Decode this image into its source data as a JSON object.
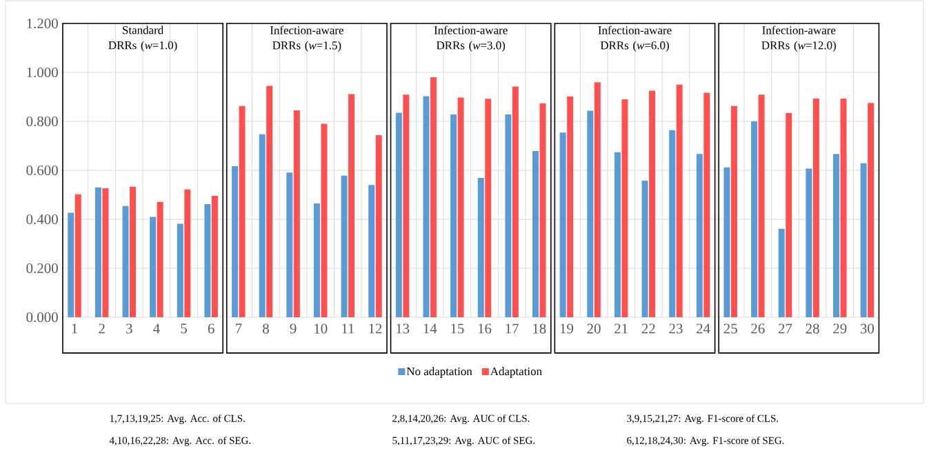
{
  "chart_data": {
    "type": "bar",
    "categories": [
      "1",
      "2",
      "3",
      "4",
      "5",
      "6",
      "7",
      "8",
      "9",
      "10",
      "11",
      "12",
      "13",
      "14",
      "15",
      "16",
      "17",
      "18",
      "19",
      "20",
      "21",
      "22",
      "23",
      "24",
      "25",
      "26",
      "27",
      "28",
      "29",
      "30"
    ],
    "series": [
      {
        "name": "No adaptation",
        "color": "#5b9bd5",
        "values": [
          0.427,
          0.53,
          0.454,
          0.41,
          0.382,
          0.462,
          0.617,
          0.747,
          0.591,
          0.465,
          0.578,
          0.54,
          0.835,
          0.903,
          0.828,
          0.569,
          0.828,
          0.679,
          0.754,
          0.844,
          0.674,
          0.558,
          0.764,
          0.667,
          0.612,
          0.8,
          0.361,
          0.607,
          0.667,
          0.629
        ]
      },
      {
        "name": "Adaptation",
        "color": "#ff5050",
        "values": [
          0.502,
          0.527,
          0.533,
          0.471,
          0.522,
          0.496,
          0.863,
          0.945,
          0.845,
          0.79,
          0.911,
          0.744,
          0.909,
          0.98,
          0.897,
          0.892,
          0.942,
          0.873,
          0.902,
          0.96,
          0.89,
          0.925,
          0.95,
          0.917,
          0.863,
          0.909,
          0.834,
          0.894,
          0.893,
          0.875
        ]
      }
    ],
    "ylim": [
      0,
      1.2
    ],
    "yticks": [
      {
        "value": 0,
        "label": "0.000"
      },
      {
        "value": 0.2,
        "label": "0.200"
      },
      {
        "value": 0.4,
        "label": "0.400"
      },
      {
        "value": 0.6,
        "label": "0.600"
      },
      {
        "value": 0.8,
        "label": "0.800"
      },
      {
        "value": 1.0,
        "label": "1.000"
      },
      {
        "value": 1.2,
        "label": "1.200"
      }
    ],
    "grid": true,
    "legend": "bottom",
    "annotations": [
      "Standard DRRs (*w*=1.0)",
      "Infection-aware DRRs (*w*=1.5)",
      "Infection-aware DRRs (*w*=3.0)",
      "Infection-aware DRRs (*w*=6.0)",
      "Infection-aware DRRs (*w*=12.0)",
      "1,7,13,19,25: Avg. Acc. of CLS.",
      "2,8,14,20,26: Avg. AUC of CLS.",
      "3,9,15,21,27: Avg. F1-score of CLS.",
      "4,10,16,22,28: Avg. Acc. of SEG.",
      "5,11,17,23,29: Avg. AUC of SEG.",
      "6,12,18,24,30: Avg. F1-score of SEG."
    ]
  }
}
